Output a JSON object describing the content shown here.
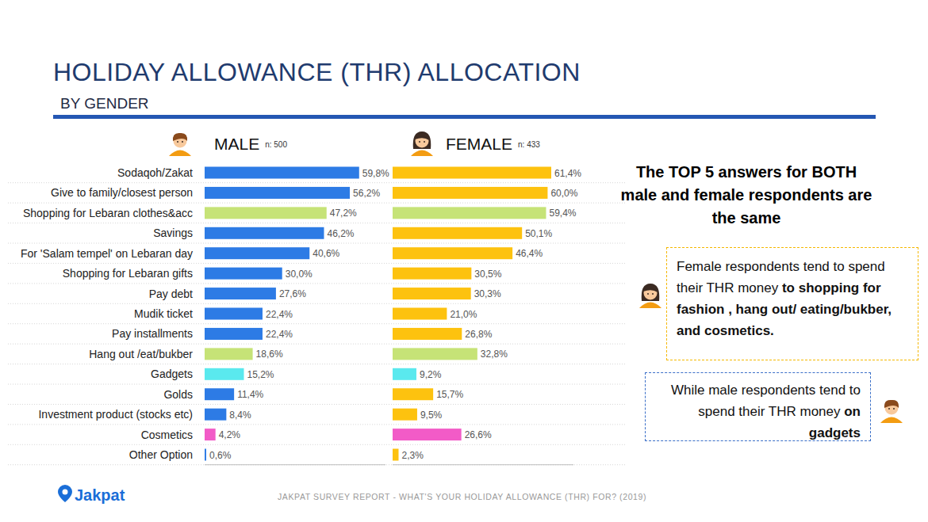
{
  "header": {
    "title": "HOLIDAY ALLOWANCE (THR) ALLOCATION",
    "subtitle": "BY GENDER"
  },
  "chart_data": [
    {
      "type": "bar",
      "orientation": "horizontal",
      "title": "MALE",
      "subtitle": "n: 500",
      "categories": [
        "Sodaqoh/Zakat",
        "Give to family/closest person",
        "Shopping for Lebaran clothes&acc",
        "Savings",
        "For 'Salam tempel' on Lebaran day",
        "Shopping for Lebaran gifts",
        "Pay debt",
        "Mudik ticket",
        "Pay installments",
        "Hang out /eat/bukber",
        "Gadgets",
        "Golds",
        "Investment product (stocks etc)",
        "Cosmetics",
        "Other Option"
      ],
      "values": [
        59.8,
        56.2,
        47.2,
        46.2,
        40.6,
        30.0,
        27.6,
        22.4,
        22.4,
        18.6,
        15.2,
        11.4,
        8.4,
        4.2,
        0.6
      ],
      "value_labels": [
        "59,8%",
        "56,2%",
        "47,2%",
        "46,2%",
        "40,6%",
        "30,0%",
        "27,6%",
        "22,4%",
        "22,4%",
        "18,6%",
        "15,2%",
        "11,4%",
        "8,4%",
        "4,2%",
        "0,6%"
      ],
      "colors": [
        "#2d7be5",
        "#2d7be5",
        "#c6e377",
        "#2d7be5",
        "#2d7be5",
        "#2d7be5",
        "#2d7be5",
        "#2d7be5",
        "#2d7be5",
        "#c6e377",
        "#5ae9ee",
        "#2d7be5",
        "#2d7be5",
        "#f25bc7",
        "#2d7be5"
      ],
      "xlim": [
        0,
        70
      ],
      "data_labels": true,
      "tick_labels": "y",
      "grid": false
    },
    {
      "type": "bar",
      "orientation": "horizontal",
      "title": "FEMALE",
      "subtitle": "n: 433",
      "categories": [
        "Sodaqoh/Zakat",
        "Give to family/closest person",
        "Shopping for Lebaran clothes&acc",
        "Savings",
        "For 'Salam tempel' on Lebaran day",
        "Shopping for Lebaran gifts",
        "Pay debt",
        "Mudik ticket",
        "Pay installments",
        "Hang out /eat/bukber",
        "Gadgets",
        "Golds",
        "Investment product (stocks etc)",
        "Cosmetics",
        "Other Option"
      ],
      "values": [
        61.4,
        60.0,
        59.4,
        50.1,
        46.4,
        30.5,
        30.3,
        21.0,
        26.8,
        32.8,
        9.2,
        15.7,
        9.5,
        26.6,
        2.3
      ],
      "value_labels": [
        "61,4%",
        "60,0%",
        "59,4%",
        "50,1%",
        "46,4%",
        "30,5%",
        "30,3%",
        "21,0%",
        "26,8%",
        "32,8%",
        "9,2%",
        "15,7%",
        "9,5%",
        "26,6%",
        "2,3%"
      ],
      "colors": [
        "#fdc20f",
        "#fdc20f",
        "#c6e377",
        "#fdc20f",
        "#fdc20f",
        "#fdc20f",
        "#fdc20f",
        "#fdc20f",
        "#fdc20f",
        "#c6e377",
        "#5ae9ee",
        "#fdc20f",
        "#fdc20f",
        "#f25bc7",
        "#fdc20f"
      ],
      "xlim": [
        0,
        70
      ],
      "data_labels": true,
      "tick_labels": false,
      "grid": false
    }
  ],
  "headline": "The TOP 5 answers for BOTH male and female respondents are the same",
  "annotations": [
    {
      "parts": [
        "Female respondents tend to spend their THR money ",
        "to shopping for fashion , hang out/ eating/bukber, and cosmetics."
      ]
    },
    {
      "parts": [
        "While male respondents tend to spend their THR money ",
        "on gadgets"
      ]
    }
  ],
  "footer": {
    "logo": "Jakpat",
    "source": "JAKPAT  SURVEY REPORT - WHAT'S YOUR HOLIDAY ALLOWANCE (THR) FOR? (2019)"
  }
}
